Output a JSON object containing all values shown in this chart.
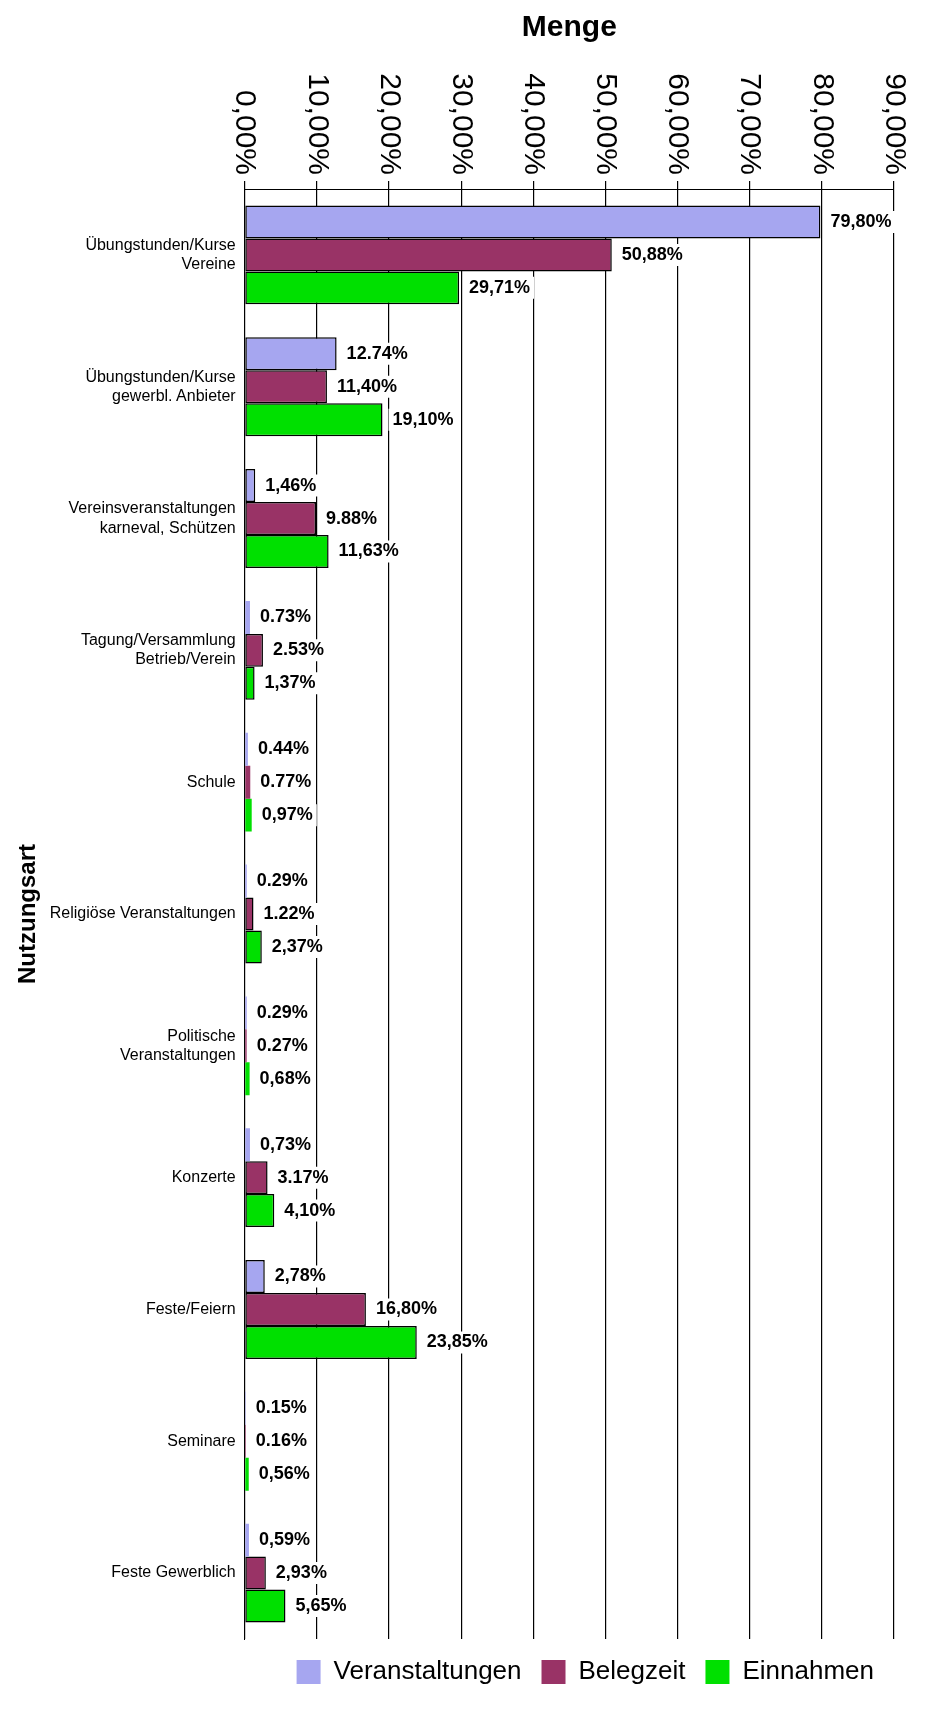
{
  "chart_data": {
    "type": "bar",
    "orientation": "horizontal",
    "xlabel": "Menge",
    "ylabel": "Nutzungsart",
    "categories": [
      "Übungstunden/Kurse\nVereine",
      "Übungstunden/Kurse\ngewerbl. Anbieter",
      "Vereinsveranstaltungen\nkarneval, Schützen",
      "Tagung/Versammlung\nBetrieb/Verein",
      "Schule",
      "Religiöse Veranstaltungen",
      "Politische\nVeranstaltungen",
      "Konzerte",
      "Feste/Feiern",
      "Seminare",
      "Feste Gewerblich"
    ],
    "series": [
      {
        "name": "Veranstaltungen",
        "color": "#a6a6f0",
        "values": [
          79.8,
          12.74,
          1.46,
          0.73,
          0.44,
          0.29,
          0.29,
          0.73,
          2.78,
          0.15,
          0.59
        ],
        "value_labels": [
          "79,80%",
          "12.74%",
          "1,46%",
          "0.73%",
          "0.44%",
          "0.29%",
          "0.29%",
          "0,73%",
          "2,78%",
          "0.15%",
          "0,59%"
        ]
      },
      {
        "name": "Belegzeit",
        "color": "#993366",
        "values": [
          50.88,
          11.4,
          9.88,
          2.53,
          0.77,
          1.22,
          0.27,
          3.17,
          16.8,
          0.16,
          2.93
        ],
        "value_labels": [
          "50,88%",
          "11,40%",
          "9.88%",
          "2.53%",
          "0.77%",
          "1.22%",
          "0.27%",
          "3.17%",
          "16,80%",
          "0.16%",
          "2,93%"
        ]
      },
      {
        "name": "Einnahmen",
        "color": "#00e000",
        "values": [
          29.71,
          19.1,
          11.63,
          1.37,
          0.97,
          2.37,
          0.68,
          4.1,
          23.85,
          0.56,
          5.65
        ],
        "value_labels": [
          "29,71%",
          "19,10%",
          "11,63%",
          "1,37%",
          "0,97%",
          "2,37%",
          "0,68%",
          "4,10%",
          "23,85%",
          "0,56%",
          "5,65%"
        ]
      }
    ],
    "xlim": [
      0,
      90
    ],
    "xticks": [
      {
        "value": 0,
        "label": "0,00%"
      },
      {
        "value": 10,
        "label": "10,00%"
      },
      {
        "value": 20,
        "label": "20,00%"
      },
      {
        "value": 30,
        "label": "30,00%"
      },
      {
        "value": 40,
        "label": "40,00%"
      },
      {
        "value": 50,
        "label": "50,00%"
      },
      {
        "value": 60,
        "label": "60,00%"
      },
      {
        "value": 70,
        "label": "70,00%"
      },
      {
        "value": 80,
        "label": "80,00%"
      },
      {
        "value": 90,
        "label": "90,00%"
      }
    ],
    "grid": "x",
    "legend": "bottom right"
  }
}
